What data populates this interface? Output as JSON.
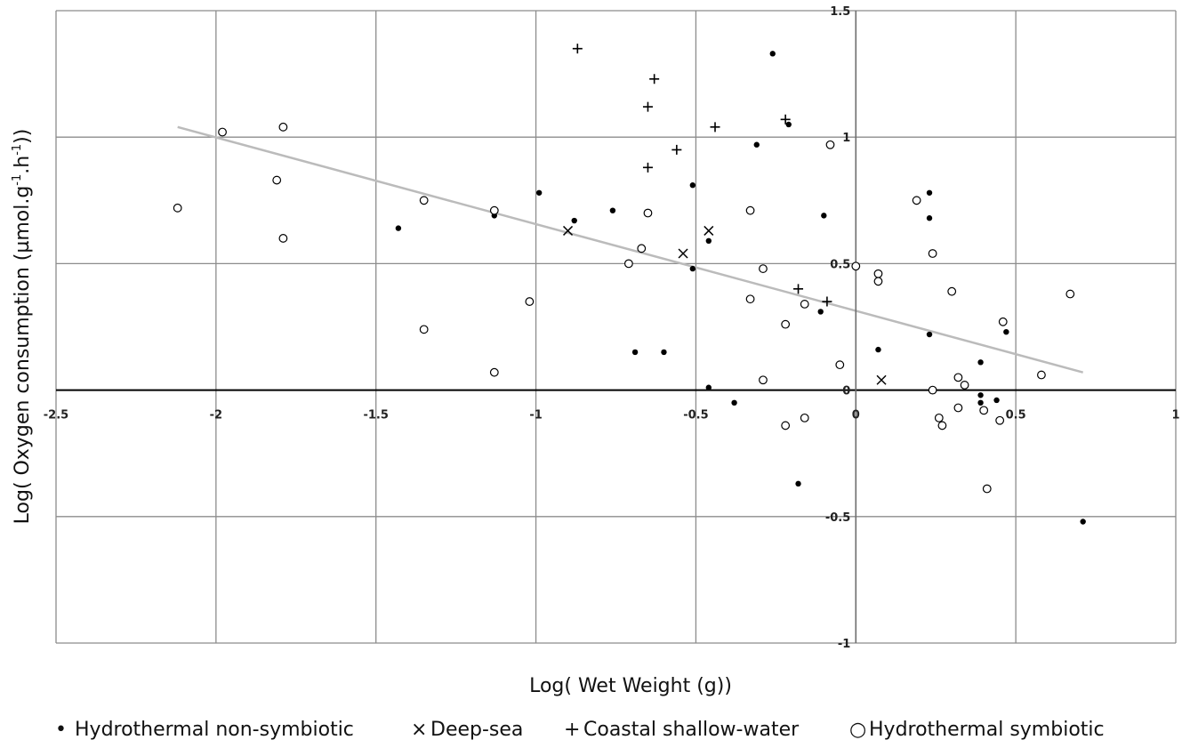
{
  "chart_data": {
    "type": "scatter",
    "xlabel": "Log( Wet Weight (g))",
    "ylabel_parts": [
      "Log( Oxygen consumption (µmol.g",
      "-1",
      ".h",
      "-1",
      "))"
    ],
    "xlim": [
      -2.5,
      1
    ],
    "ylim": [
      -1,
      1.5
    ],
    "x_ticks": [
      -2.5,
      -2,
      -1.5,
      -1,
      -0.5,
      0,
      0.5,
      1
    ],
    "y_ticks": [
      -1,
      -0.5,
      0,
      0.5,
      1,
      1.5
    ],
    "x_tick_labels": [
      "-2.5",
      "-2",
      "-1.5",
      "-1",
      "-0.5",
      "0",
      "0.5",
      "1"
    ],
    "y_tick_labels": [
      "-1",
      "-0.5",
      "0",
      "0.5",
      "1",
      "1.5"
    ],
    "grid": true,
    "legend_position": "bottom",
    "trendline": {
      "color": "#bbbbbb",
      "x": [
        -2.12,
        0.71
      ],
      "y": [
        1.04,
        0.07
      ]
    },
    "series": [
      {
        "name": "Hydrothermal non-symbiotic",
        "marker": "dot",
        "legend_glyph": "•",
        "color": "#000000",
        "points": [
          [
            -1.43,
            0.64
          ],
          [
            -1.13,
            0.69
          ],
          [
            -0.99,
            0.78
          ],
          [
            -0.88,
            0.67
          ],
          [
            -0.76,
            0.71
          ],
          [
            -0.69,
            0.15
          ],
          [
            -0.6,
            0.15
          ],
          [
            -0.51,
            0.81
          ],
          [
            -0.51,
            0.48
          ],
          [
            -0.46,
            0.59
          ],
          [
            -0.46,
            0.01
          ],
          [
            -0.38,
            -0.05
          ],
          [
            -0.31,
            0.97
          ],
          [
            -0.26,
            1.33
          ],
          [
            -0.21,
            1.05
          ],
          [
            -0.18,
            -0.37
          ],
          [
            -0.1,
            0.69
          ],
          [
            -0.11,
            0.31
          ],
          [
            0.07,
            0.16
          ],
          [
            0.23,
            0.78
          ],
          [
            0.23,
            0.68
          ],
          [
            0.23,
            0.22
          ],
          [
            0.39,
            0.11
          ],
          [
            0.39,
            -0.02
          ],
          [
            0.39,
            -0.05
          ],
          [
            0.44,
            -0.04
          ],
          [
            0.47,
            0.23
          ],
          [
            0.71,
            -0.52
          ]
        ]
      },
      {
        "name": "Deep-sea",
        "marker": "x",
        "legend_glyph": "×",
        "color": "#000000",
        "points": [
          [
            -0.9,
            0.63
          ],
          [
            -0.54,
            0.54
          ],
          [
            -0.46,
            0.63
          ],
          [
            0.08,
            0.04
          ]
        ]
      },
      {
        "name": "Coastal shallow-water",
        "marker": "plus",
        "legend_glyph": "+",
        "color": "#000000",
        "points": [
          [
            -0.87,
            1.35
          ],
          [
            -0.63,
            1.23
          ],
          [
            -0.65,
            1.12
          ],
          [
            -0.44,
            1.04
          ],
          [
            -0.22,
            1.07
          ],
          [
            -0.56,
            0.95
          ],
          [
            -0.65,
            0.88
          ],
          [
            -0.18,
            0.4
          ],
          [
            -0.09,
            0.35
          ]
        ]
      },
      {
        "name": "Hydrothermal symbiotic",
        "marker": "circle",
        "legend_glyph": "○",
        "color": "#000000",
        "points": [
          [
            -2.12,
            0.72
          ],
          [
            -1.98,
            1.02
          ],
          [
            -1.79,
            1.04
          ],
          [
            -1.81,
            0.83
          ],
          [
            -1.79,
            0.6
          ],
          [
            -1.35,
            0.75
          ],
          [
            -1.35,
            0.24
          ],
          [
            -1.13,
            0.71
          ],
          [
            -1.13,
            0.07
          ],
          [
            -1.02,
            0.35
          ],
          [
            -0.71,
            0.5
          ],
          [
            -0.67,
            0.56
          ],
          [
            -0.65,
            0.7
          ],
          [
            -0.33,
            0.71
          ],
          [
            -0.33,
            0.36
          ],
          [
            -0.29,
            0.48
          ],
          [
            -0.29,
            0.04
          ],
          [
            -0.22,
            0.26
          ],
          [
            -0.22,
            -0.14
          ],
          [
            -0.16,
            0.34
          ],
          [
            -0.16,
            -0.11
          ],
          [
            -0.08,
            0.97
          ],
          [
            -0.05,
            0.1
          ],
          [
            0.0,
            0.49
          ],
          [
            0.07,
            0.46
          ],
          [
            0.07,
            0.43
          ],
          [
            0.19,
            0.75
          ],
          [
            0.24,
            0.54
          ],
          [
            0.24,
            0.0
          ],
          [
            0.26,
            -0.11
          ],
          [
            0.27,
            -0.14
          ],
          [
            0.3,
            0.39
          ],
          [
            0.32,
            0.05
          ],
          [
            0.32,
            -0.07
          ],
          [
            0.34,
            0.02
          ],
          [
            0.4,
            -0.08
          ],
          [
            0.41,
            -0.39
          ],
          [
            0.45,
            -0.12
          ],
          [
            0.46,
            0.27
          ],
          [
            0.58,
            0.06
          ],
          [
            0.67,
            0.38
          ]
        ]
      }
    ]
  }
}
